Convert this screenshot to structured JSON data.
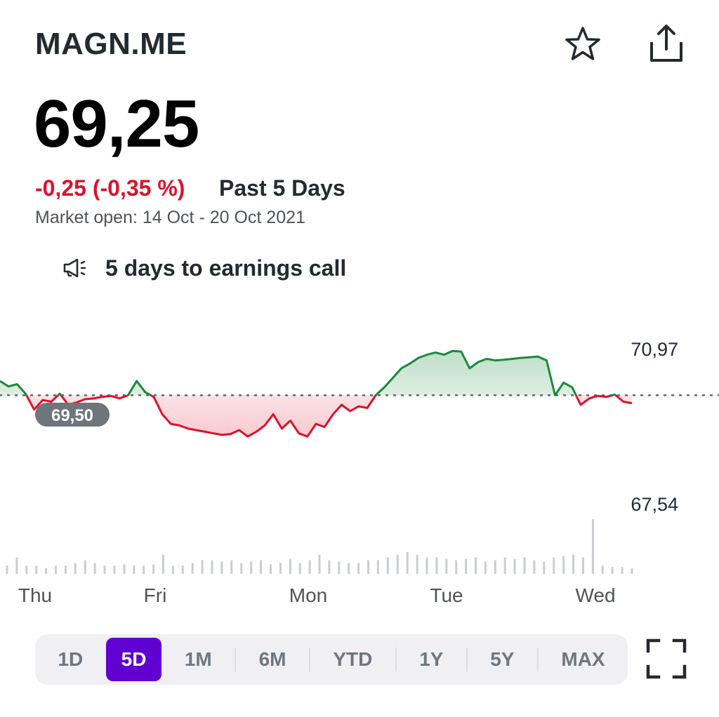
{
  "header": {
    "ticker": "MAGN.ME",
    "icons": {
      "watchlist": "star-outline-icon",
      "share": "share-icon"
    }
  },
  "quote": {
    "price": "69,25",
    "change": "-0,25 (-0,35 %)",
    "range_label": "Past 5 Days",
    "market_status": "Market open: 14 Oct - 20 Oct 2021",
    "earnings_note": "5 days to earnings call",
    "colors": {
      "negative": "#e0102b",
      "positive": "#1a8a3a"
    }
  },
  "chart_data": {
    "type": "line",
    "x_labels": [
      "Thu",
      "Fri",
      "Mon",
      "Tue",
      "Wed"
    ],
    "y_high_label": "70,97",
    "y_low_label": "67,54",
    "y_high": 70.97,
    "y_low": 67.54,
    "reference_label": "69,50",
    "reference_value": 69.5,
    "grid": false,
    "series": [
      {
        "values": [
          69.95,
          69.78,
          69.85,
          69.55,
          69.05,
          69.35,
          69.3,
          69.55,
          69.2,
          69.28,
          69.38,
          69.4,
          69.45,
          69.48,
          69.4,
          69.5,
          69.95,
          69.6,
          69.45,
          68.9,
          68.6,
          68.55,
          68.45,
          68.4,
          68.35,
          68.3,
          68.25,
          68.28,
          68.4,
          68.2,
          68.35,
          68.55,
          68.9,
          68.45,
          68.7,
          68.3,
          68.2,
          68.6,
          68.5,
          68.9,
          69.2,
          69.0,
          69.15,
          69.1,
          69.5,
          69.75,
          70.05,
          70.35,
          70.5,
          70.68,
          70.78,
          70.85,
          70.78,
          70.9,
          70.88,
          70.35,
          70.55,
          70.65,
          70.6,
          70.62,
          70.65,
          70.68,
          70.7,
          70.72,
          70.6,
          69.5,
          69.9,
          69.75,
          69.2,
          69.4,
          69.48,
          69.45,
          69.52,
          69.3,
          69.25
        ]
      }
    ],
    "volume_values": [
      6,
      12,
      6,
      6,
      4,
      6,
      6,
      8,
      10,
      8,
      6,
      6,
      7,
      6,
      6,
      7,
      14,
      6,
      6,
      8,
      10,
      10,
      9,
      10,
      8,
      9,
      10,
      7,
      8,
      11,
      8,
      10,
      14,
      10,
      9,
      8,
      8,
      10,
      10,
      12,
      14,
      16,
      14,
      12,
      12,
      11,
      10,
      11,
      12,
      9,
      10,
      12,
      11,
      12,
      10,
      9,
      12,
      13,
      14,
      12,
      40,
      6,
      5,
      5,
      4
    ],
    "range_options": [
      {
        "label": "1D",
        "active": false
      },
      {
        "label": "5D",
        "active": true
      },
      {
        "label": "1M",
        "active": false
      },
      {
        "label": "6M",
        "active": false
      },
      {
        "label": "YTD",
        "active": false
      },
      {
        "label": "1Y",
        "active": false
      },
      {
        "label": "5Y",
        "active": false
      },
      {
        "label": "MAX",
        "active": false
      }
    ],
    "accent_color": "#6001d2"
  },
  "controls": {
    "fullscreen": "fullscreen-icon"
  }
}
